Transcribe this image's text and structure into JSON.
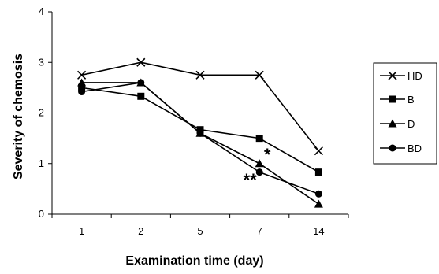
{
  "chart_data": {
    "type": "line",
    "title": "",
    "xlabel": "Examination time (day)",
    "ylabel": "Severity of chemosis",
    "categories": [
      "1",
      "2",
      "5",
      "7",
      "14"
    ],
    "ylim": [
      0,
      4
    ],
    "yticks": [
      "0",
      "1",
      "2",
      "3",
      "4"
    ],
    "grid": false,
    "legend_position": "right",
    "series": [
      {
        "name": "HD",
        "marker": "x",
        "values": [
          2.75,
          3.0,
          2.75,
          2.75,
          1.25
        ]
      },
      {
        "name": "B",
        "marker": "square",
        "values": [
          2.5,
          2.33,
          1.67,
          1.5,
          0.83
        ]
      },
      {
        "name": "D",
        "marker": "triangle",
        "values": [
          2.6,
          2.6,
          1.6,
          1.0,
          0.2
        ]
      },
      {
        "name": "BD",
        "marker": "circle",
        "values": [
          2.42,
          2.6,
          1.6,
          0.83,
          0.4
        ]
      }
    ],
    "annotations": [
      {
        "text": "*",
        "category": "7",
        "value": 1.0
      },
      {
        "text": "**",
        "category": "7",
        "value": 0.5
      }
    ],
    "colors": {
      "line": "#000000",
      "background": "#ffffff"
    }
  }
}
